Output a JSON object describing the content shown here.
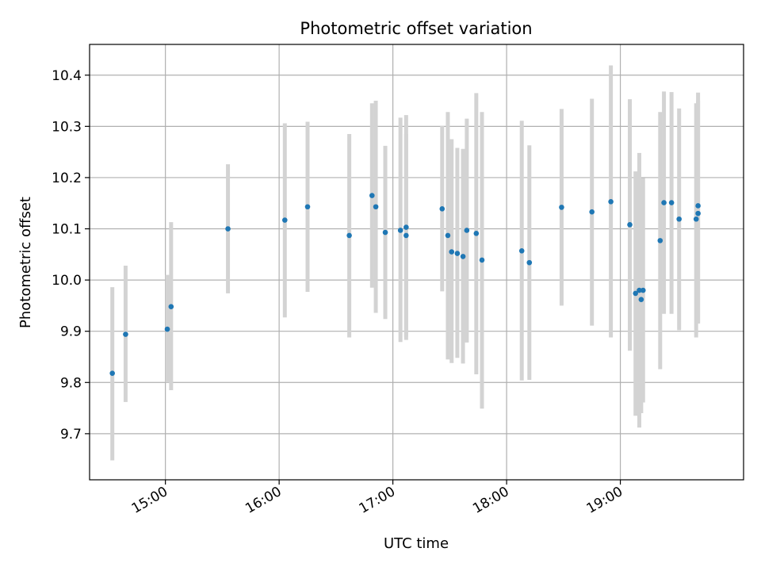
{
  "chart_data": {
    "type": "scatter",
    "title": "Photometric offset variation",
    "xlabel": "UTC time",
    "ylabel": "Photometric offset",
    "grid": true,
    "x_axis": {
      "unit": "UTC time (HH:MM)",
      "range": [
        "14:20",
        "20:05"
      ],
      "ticks": [
        "15:00",
        "16:00",
        "17:00",
        "18:00",
        "19:00"
      ]
    },
    "y_axis": {
      "range": [
        9.61,
        10.46
      ],
      "ticks": [
        9.7,
        9.8,
        9.9,
        10.0,
        10.1,
        10.2,
        10.3,
        10.4
      ],
      "tick_labels": [
        "9.7",
        "9.8",
        "9.9",
        "10.0",
        "10.1",
        "10.2",
        "10.3",
        "10.4"
      ]
    },
    "colors": {
      "marker": "#1f77b4",
      "errorbar": "#d3d3d3",
      "grid": "#b0b0b0"
    },
    "points": [
      {
        "x": "14:32",
        "y": 9.818,
        "lo": 9.648,
        "hi": 9.986
      },
      {
        "x": "14:39",
        "y": 9.894,
        "lo": 9.762,
        "hi": 10.028
      },
      {
        "x": "15:01",
        "y": 9.904,
        "lo": 9.8,
        "hi": 10.01
      },
      {
        "x": "15:03",
        "y": 9.948,
        "lo": 9.785,
        "hi": 10.113
      },
      {
        "x": "15:33",
        "y": 10.1,
        "lo": 9.974,
        "hi": 10.226
      },
      {
        "x": "16:03",
        "y": 10.117,
        "lo": 9.927,
        "hi": 10.306
      },
      {
        "x": "16:15",
        "y": 10.143,
        "lo": 9.977,
        "hi": 10.309
      },
      {
        "x": "16:37",
        "y": 10.087,
        "lo": 9.888,
        "hi": 10.285
      },
      {
        "x": "16:49",
        "y": 10.165,
        "lo": 9.985,
        "hi": 10.345
      },
      {
        "x": "16:51",
        "y": 10.143,
        "lo": 9.936,
        "hi": 10.35
      },
      {
        "x": "16:56",
        "y": 10.093,
        "lo": 9.924,
        "hi": 10.262
      },
      {
        "x": "17:04",
        "y": 10.097,
        "lo": 9.879,
        "hi": 10.317
      },
      {
        "x": "17:07",
        "y": 10.103,
        "lo": 9.883,
        "hi": 10.322
      },
      {
        "x": "17:07",
        "y": 10.087,
        "lo": 9.889,
        "hi": 10.285
      },
      {
        "x": "17:26",
        "y": 10.139,
        "lo": 9.978,
        "hi": 10.301
      },
      {
        "x": "17:29",
        "y": 10.087,
        "lo": 9.845,
        "hi": 10.328
      },
      {
        "x": "17:31",
        "y": 10.055,
        "lo": 9.838,
        "hi": 10.275
      },
      {
        "x": "17:34",
        "y": 10.052,
        "lo": 9.848,
        "hi": 10.258
      },
      {
        "x": "17:37",
        "y": 10.046,
        "lo": 9.837,
        "hi": 10.256
      },
      {
        "x": "17:39",
        "y": 10.097,
        "lo": 9.878,
        "hi": 10.315
      },
      {
        "x": "17:44",
        "y": 10.091,
        "lo": 9.816,
        "hi": 10.365
      },
      {
        "x": "17:47",
        "y": 10.039,
        "lo": 9.749,
        "hi": 10.328
      },
      {
        "x": "18:08",
        "y": 10.057,
        "lo": 9.804,
        "hi": 10.311
      },
      {
        "x": "18:12",
        "y": 10.034,
        "lo": 9.805,
        "hi": 10.263
      },
      {
        "x": "18:29",
        "y": 10.142,
        "lo": 9.95,
        "hi": 10.334
      },
      {
        "x": "18:45",
        "y": 10.133,
        "lo": 9.911,
        "hi": 10.354
      },
      {
        "x": "18:55",
        "y": 10.153,
        "lo": 9.888,
        "hi": 10.419
      },
      {
        "x": "19:05",
        "y": 10.108,
        "lo": 9.862,
        "hi": 10.353
      },
      {
        "x": "19:08",
        "y": 9.974,
        "lo": 9.735,
        "hi": 10.212
      },
      {
        "x": "19:10",
        "y": 9.98,
        "lo": 9.712,
        "hi": 10.248
      },
      {
        "x": "19:11",
        "y": 9.962,
        "lo": 9.74,
        "hi": 10.182
      },
      {
        "x": "19:12",
        "y": 9.98,
        "lo": 9.761,
        "hi": 10.199
      },
      {
        "x": "19:21",
        "y": 10.077,
        "lo": 9.826,
        "hi": 10.328
      },
      {
        "x": "19:23",
        "y": 10.151,
        "lo": 9.934,
        "hi": 10.368
      },
      {
        "x": "19:27",
        "y": 10.151,
        "lo": 9.934,
        "hi": 10.367
      },
      {
        "x": "19:31",
        "y": 10.119,
        "lo": 9.902,
        "hi": 10.335
      },
      {
        "x": "19:40",
        "y": 10.119,
        "lo": 9.888,
        "hi": 10.345
      },
      {
        "x": "19:41",
        "y": 10.145,
        "lo": 9.915,
        "hi": 10.366
      },
      {
        "x": "19:41",
        "y": 10.13,
        "lo": 9.917,
        "hi": 10.35
      }
    ]
  }
}
